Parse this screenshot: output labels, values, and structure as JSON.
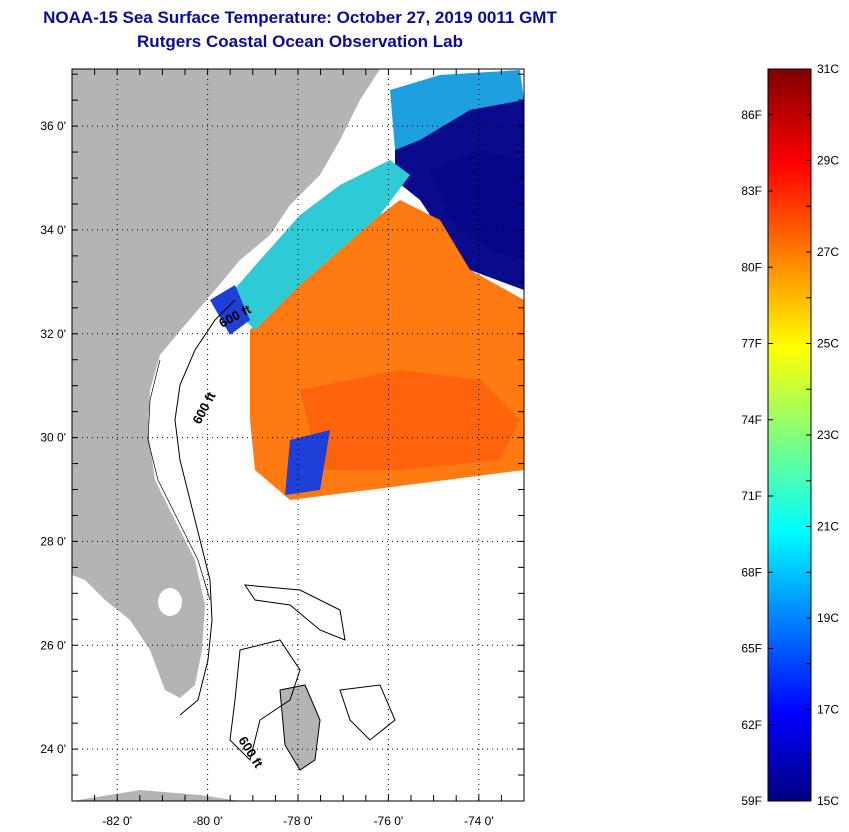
{
  "title": {
    "line1": "NOAA-15 Sea Surface Temperature:  October 27, 2019 0011 GMT",
    "line2": "Rutgers Coastal Ocean Observation Lab"
  },
  "map": {
    "lat_labels": [
      "36 0'",
      "34 0'",
      "32 0'",
      "30 0'",
      "28 0'",
      "26 0'",
      "24 0'"
    ],
    "lat_values": [
      36,
      34,
      32,
      30,
      28,
      26,
      24
    ],
    "lon_labels": [
      "-82 0'",
      "-80 0'",
      "-78 0'",
      "-76 0'",
      "-74 0'"
    ],
    "lon_values": [
      -82,
      -80,
      -78,
      -76,
      -74
    ],
    "lat_range": [
      23,
      37.1
    ],
    "lon_range": [
      -83,
      -73
    ],
    "contour_labels": [
      "600 ft",
      "600 ft",
      "600 ft"
    ],
    "colors": {
      "land": "#b4b4b4",
      "cold": "#0a0a8c",
      "warm": "#ff6a00",
      "mid": "#2ecbd6"
    }
  },
  "colorbar": {
    "celsius_labels": [
      "31C",
      "29C",
      "27C",
      "25C",
      "23C",
      "21C",
      "19C",
      "17C",
      "15C"
    ],
    "celsius_values": [
      31,
      29,
      27,
      25,
      23,
      21,
      19,
      17,
      15
    ],
    "fahrenheit_labels": [
      "86F",
      "83F",
      "80F",
      "77F",
      "74F",
      "71F",
      "68F",
      "65F",
      "62F",
      "59F"
    ],
    "fahrenheit_values": [
      86,
      83,
      80,
      77,
      74,
      71,
      68,
      65,
      62,
      59
    ],
    "range_c": [
      15,
      31
    ]
  }
}
